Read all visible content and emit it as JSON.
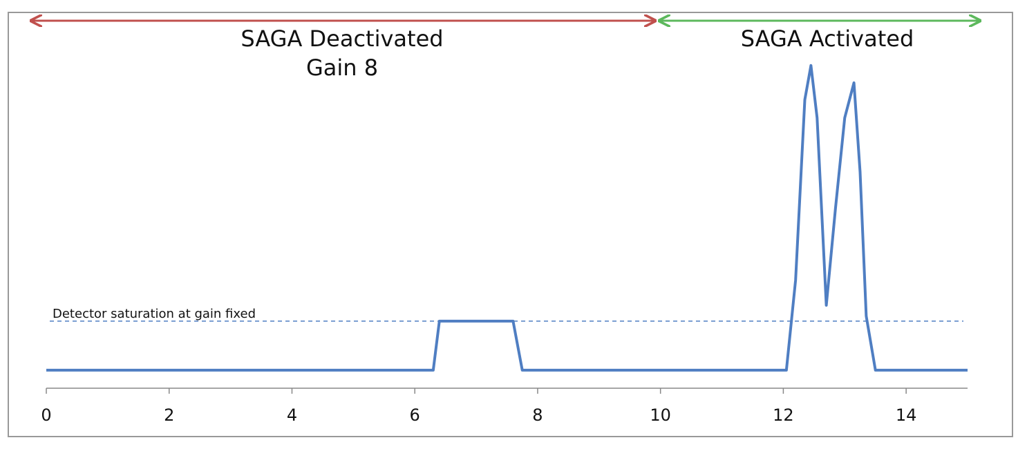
{
  "chart_data": {
    "type": "line",
    "annotations": [
      "SAGA Deactivated",
      "Gain 8",
      "SAGA Activated"
    ],
    "reference_line": {
      "label": "Detector saturation at gain fixed",
      "value": 18.6
    },
    "x": [
      0,
      6.3,
      6.4,
      7.6,
      7.75,
      12.05,
      12.2,
      12.35,
      12.45,
      12.55,
      12.7,
      12.85,
      13.0,
      13.15,
      13.25,
      13.35,
      13.5,
      15
    ],
    "series": [
      {
        "color": "#4f7ec2",
        "values": [
          5,
          5,
          18.6,
          18.6,
          5,
          5,
          30,
          80,
          89.5,
          75,
          23,
          50,
          75,
          84.7,
          60,
          20,
          5,
          5
        ]
      }
    ],
    "xlim": [
      0,
      15
    ],
    "xticks": [
      0,
      2,
      4,
      6,
      8,
      10,
      12,
      14
    ],
    "ylim": [
      0,
      100
    ]
  }
}
